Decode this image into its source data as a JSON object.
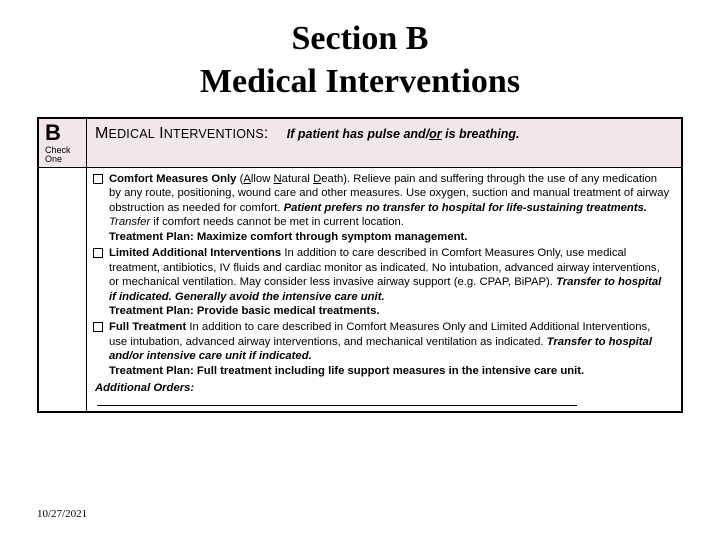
{
  "title": {
    "line1": "Section B",
    "line2": "Medical Interventions"
  },
  "header": {
    "section_letter": "B",
    "check_one_l1": "Check",
    "check_one_l2": "One",
    "label_caps": "MEDICAL INTERVENTIONS:",
    "cond_prefix": "If patient has pulse and/",
    "cond_or": "or",
    "cond_suffix": " is breathing."
  },
  "options": [
    {
      "lead": "Comfort Measures Only",
      "paren_pre": " (",
      "paren_a": "A",
      "paren_mid1": "llow ",
      "paren_n": "N",
      "paren_mid2": "atural ",
      "paren_d": "D",
      "paren_post": "eath). ",
      "body1": "Relieve pain and suffering through the use of any medication by any route, positioning, wound care and other measures. Use oxygen, suction and manual treatment of airway obstruction as needed for comfort. ",
      "emph1": "Patient prefers no transfer to hospital for life-sustaining treatments.",
      "body2": "  Transfer",
      "body3": " if comfort needs cannot be met in current location.",
      "plan_label": "Treatment Plan: ",
      "plan_text": "Maximize comfort through symptom management."
    },
    {
      "lead": "Limited Additional Interventions",
      "body1": " In addition to care described in Comfort Measures Only, use medical treatment, antibiotics, IV fluids and cardiac monitor as indicated. No intubation, advanced airway interventions, or mechanical ventilation. May consider less invasive airway support (e.g. CPAP, BiPAP). ",
      "emph1": "Transfer to hospital if indicated. Generally avoid the intensive care unit.",
      "plan_label": "Treatment Plan: ",
      "plan_text": "Provide basic medical treatments."
    },
    {
      "lead": "Full Treatment",
      "body1": " In addition to care described in Comfort Measures Only and Limited Additional Interventions, use intubation, advanced airway interventions, and mechanical ventilation as indicated. ",
      "emph1": "Transfer to hospital and/or intensive care unit if indicated.",
      "plan_label": "Treatment Plan: ",
      "plan_text": "Full treatment including life support measures in the intensive care unit."
    }
  ],
  "additional_orders_label": "Additional Orders:",
  "footer_date": "10/27/2021",
  "colors": {
    "header_bg": "#f3e6e9",
    "border": "#000000",
    "text": "#000000",
    "page_bg": "#ffffff"
  }
}
